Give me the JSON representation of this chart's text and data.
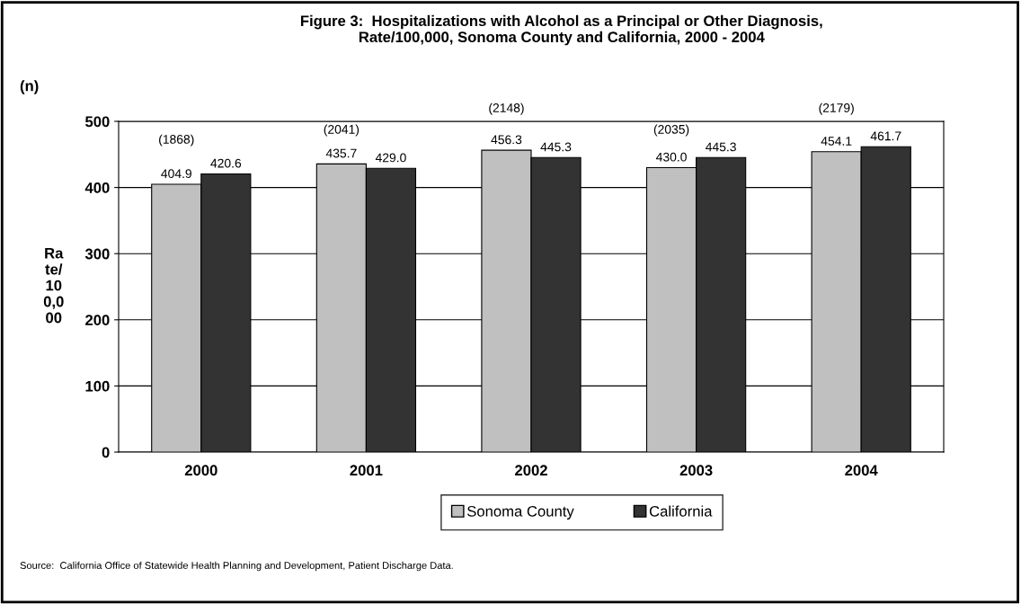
{
  "chart_data": {
    "type": "bar",
    "title": "Figure 3:  Hospitalizations with Alcohol as a Principal or Other Diagnosis,\nRate/100,000, Sonoma County and California, 2000 - 2004",
    "ylabel": "Ra\nte/\n10\n0,0\n00",
    "categories": [
      "2000",
      "2001",
      "2002",
      "2003",
      "2004"
    ],
    "series": [
      {
        "name": "Sonoma County",
        "color": "#c0c0c0",
        "values": [
          404.9,
          435.7,
          456.3,
          430.0,
          454.1
        ],
        "value_labels": [
          "404.9",
          "435.7",
          "456.3",
          "430.0",
          "454.1"
        ]
      },
      {
        "name": "California",
        "color": "#333333",
        "values": [
          420.6,
          429.0,
          445.3,
          445.3,
          461.7
        ],
        "value_labels": [
          "420.6",
          "429.0",
          "445.3",
          "445.3",
          "461.7"
        ]
      }
    ],
    "ylim": [
      0,
      500
    ],
    "yticks": [
      0,
      100,
      200,
      300,
      400,
      500
    ],
    "grid": "y",
    "legend": "bottom",
    "annotations": [
      "(1868)",
      "(2041)",
      "(2148)",
      "(2035)",
      "(2179)",
      "(n)",
      "Source:  California Office of Statewide Health Planning and Development, Patient Discharge Data."
    ]
  }
}
